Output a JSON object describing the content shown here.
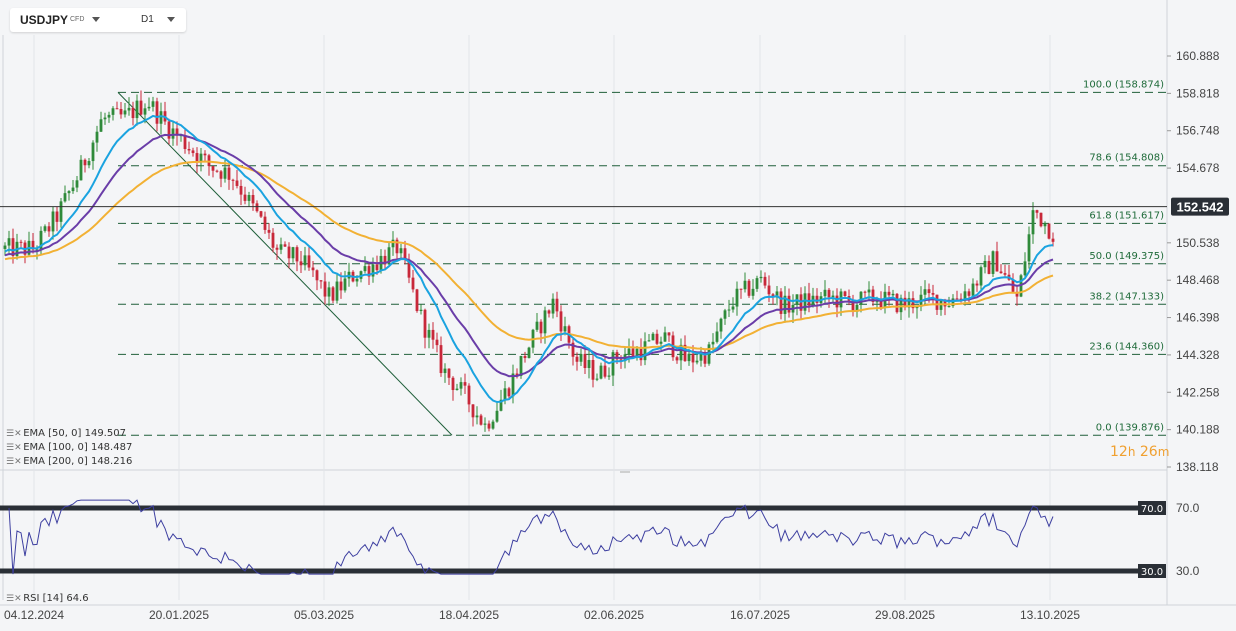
{
  "header": {
    "symbol": "USDJPY",
    "instrument_type": "CFD",
    "timeframe": "D1"
  },
  "price_axis": {
    "ticks": [
      "160.888",
      "158.818",
      "156.748",
      "154.678",
      "152.542",
      "150.538",
      "148.468",
      "146.398",
      "144.328",
      "142.258",
      "140.188",
      "138.118"
    ],
    "current_price": "152.542"
  },
  "date_axis": {
    "ticks": [
      "04.12.2024",
      "20.01.2025",
      "05.03.2025",
      "18.04.2025",
      "02.06.2025",
      "16.07.2025",
      "29.08.2025",
      "13.10.2025"
    ]
  },
  "fibonacci": [
    {
      "label": "100.0 (158.874)",
      "price": 158.874
    },
    {
      "label": "78.6 (154.808)",
      "price": 154.808
    },
    {
      "label": "61.8 (151.617)",
      "price": 151.617
    },
    {
      "label": "50.0 (149.375)",
      "price": 149.375
    },
    {
      "label": "38.2 (147.133)",
      "price": 147.133
    },
    {
      "label": "23.6 (144.360)",
      "price": 144.36
    },
    {
      "label": "0.0 (139.876)",
      "price": 139.876
    }
  ],
  "indicators": {
    "ema50": {
      "label": "EMA [50, 0]",
      "value": "149.507",
      "color": "#1aa3e0"
    },
    "ema100": {
      "label": "EMA [100, 0]",
      "value": "148.487",
      "color": "#6a3da8"
    },
    "ema200": {
      "label": "EMA [200, 0]",
      "value": "148.216",
      "color": "#f2b134"
    },
    "rsi": {
      "label": "RSI [14]",
      "value": "64.6",
      "color": "#3d3fa0",
      "upper": "70.0",
      "lower": "30.0"
    }
  },
  "countdown": {
    "hours": "12",
    "hours_unit": "h",
    "minutes": "26",
    "minutes_unit": "m"
  },
  "colors": {
    "up": "#2f8a3a",
    "down": "#c8283a",
    "fib_line": "#1f5f3a",
    "fib_text": "#1f6b3a"
  },
  "chart_data": {
    "type": "candlestick",
    "symbol": "USDJPY",
    "timeframe": "D1",
    "ylim": [
      138.118,
      160.888
    ],
    "x": [
      "04.12.2024",
      "20.01.2025",
      "05.03.2025",
      "18.04.2025",
      "02.06.2025",
      "16.07.2025",
      "29.08.2025",
      "13.10.2025"
    ],
    "close_path": [
      [
        "04.12.2024",
        150.2
      ],
      [
        "11.12.2024",
        152.0
      ],
      [
        "18.12.2024",
        154.4
      ],
      [
        "25.12.2024",
        157.4
      ],
      [
        "01.01.2025",
        157.5
      ],
      [
        "08.01.2025",
        158.4
      ],
      [
        "14.01.2025",
        157.0
      ],
      [
        "20.01.2025",
        156.0
      ],
      [
        "27.01.2025",
        154.8
      ],
      [
        "03.02.2025",
        154.3
      ],
      [
        "10.02.2025",
        152.3
      ],
      [
        "17.02.2025",
        150.0
      ],
      [
        "24.02.2025",
        149.6
      ],
      [
        "05.03.2025",
        147.5
      ],
      [
        "12.03.2025",
        148.7
      ],
      [
        "19.03.2025",
        149.4
      ],
      [
        "26.03.2025",
        150.3
      ],
      [
        "02.04.2025",
        146.5
      ],
      [
        "09.04.2025",
        143.5
      ],
      [
        "16.04.2025",
        142.0
      ],
      [
        "22.04.2025",
        140.4
      ],
      [
        "29.04.2025",
        142.5
      ],
      [
        "06.05.2025",
        145.0
      ],
      [
        "13.05.2025",
        147.3
      ],
      [
        "20.05.2025",
        144.0
      ],
      [
        "27.05.2025",
        143.2
      ],
      [
        "02.06.2025",
        144.3
      ],
      [
        "09.06.2025",
        144.6
      ],
      [
        "16.06.2025",
        145.3
      ],
      [
        "23.06.2025",
        144.0
      ],
      [
        "30.06.2025",
        144.5
      ],
      [
        "07.07.2025",
        147.3
      ],
      [
        "16.07.2025",
        148.5
      ],
      [
        "23.07.2025",
        147.0
      ],
      [
        "30.07.2025",
        147.3
      ],
      [
        "06.08.2025",
        147.5
      ],
      [
        "13.08.2025",
        147.2
      ],
      [
        "20.08.2025",
        147.5
      ],
      [
        "29.08.2025",
        147.1
      ],
      [
        "05.09.2025",
        147.5
      ],
      [
        "12.09.2025",
        147.3
      ],
      [
        "19.09.2025",
        148.1
      ],
      [
        "26.09.2025",
        149.7
      ],
      [
        "03.10.2025",
        147.4
      ],
      [
        "08.10.2025",
        152.4
      ],
      [
        "13.10.2025",
        151.3
      ],
      [
        "17.10.2025",
        150.4
      ],
      [
        "21.10.2025",
        152.5
      ]
    ],
    "ema": [
      {
        "name": "EMA [50, 0]",
        "last": 149.507
      },
      {
        "name": "EMA [100, 0]",
        "last": 148.487
      },
      {
        "name": "EMA [200, 0]",
        "last": 148.216
      }
    ],
    "fib_levels": [
      158.874,
      154.808,
      151.617,
      149.375,
      147.133,
      144.36,
      139.876
    ],
    "rsi": {
      "period": 14,
      "last": 64.6,
      "levels": [
        70,
        30
      ]
    }
  }
}
